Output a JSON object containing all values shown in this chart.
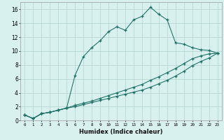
{
  "xlabel": "Humidex (Indice chaleur)",
  "background_color": "#d8f0ee",
  "grid_color": "#b8d8d4",
  "line_color": "#1a6e64",
  "xlim": [
    -0.5,
    23.5
  ],
  "ylim": [
    0,
    17
  ],
  "xticks": [
    0,
    1,
    2,
    3,
    4,
    5,
    6,
    7,
    8,
    9,
    10,
    11,
    12,
    13,
    14,
    15,
    16,
    17,
    18,
    19,
    20,
    21,
    22,
    23
  ],
  "yticks": [
    0,
    2,
    4,
    6,
    8,
    10,
    12,
    14,
    16
  ],
  "s1_x": [
    0,
    1,
    2,
    3,
    4,
    5,
    6,
    7,
    8,
    9,
    10,
    11,
    12,
    13,
    14,
    15,
    16,
    17,
    18,
    19,
    20,
    21,
    22,
    23
  ],
  "s1_y": [
    0.8,
    0.3,
    1.0,
    1.2,
    1.5,
    1.8,
    6.5,
    9.2,
    10.5,
    11.5,
    12.8,
    13.5,
    13.0,
    14.5,
    15.0,
    16.3,
    15.3,
    14.5,
    11.2,
    11.0,
    10.5,
    10.2,
    10.1,
    9.7
  ],
  "s2_x": [
    0,
    1,
    2,
    3,
    4,
    5,
    6,
    7,
    8,
    9,
    10,
    11,
    12,
    13,
    14,
    15,
    16,
    17,
    18,
    19,
    20,
    21,
    22,
    23
  ],
  "s2_y": [
    0.8,
    0.3,
    1.0,
    1.2,
    1.5,
    1.8,
    2.2,
    2.5,
    2.8,
    3.2,
    3.6,
    4.0,
    4.4,
    4.8,
    5.2,
    5.8,
    6.3,
    6.9,
    7.5,
    8.2,
    8.9,
    9.3,
    9.6,
    9.7
  ],
  "s3_x": [
    0,
    1,
    2,
    3,
    4,
    5,
    6,
    7,
    8,
    9,
    10,
    11,
    12,
    13,
    14,
    15,
    16,
    17,
    18,
    19,
    20,
    21,
    22,
    23
  ],
  "s3_y": [
    0.8,
    0.3,
    1.0,
    1.2,
    1.5,
    1.8,
    2.0,
    2.3,
    2.6,
    2.9,
    3.2,
    3.5,
    3.8,
    4.1,
    4.4,
    4.8,
    5.3,
    5.8,
    6.4,
    7.1,
    7.9,
    8.5,
    9.0,
    9.7
  ]
}
